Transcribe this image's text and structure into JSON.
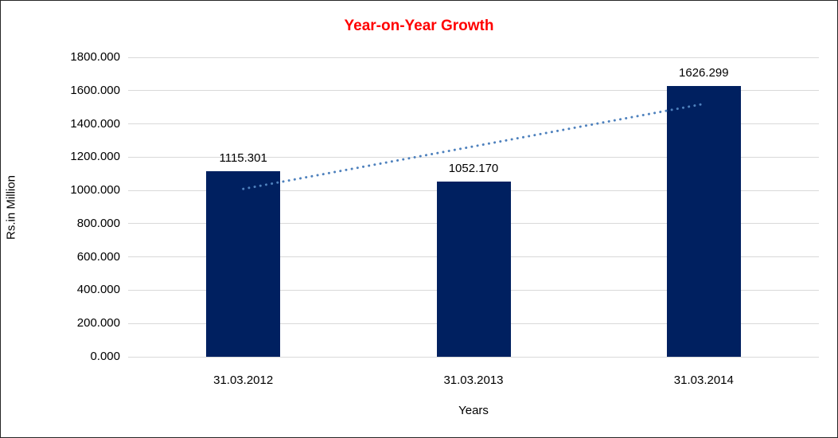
{
  "chart_data": {
    "type": "bar",
    "title": "Year-on-Year Growth",
    "title_color": "#FF0000",
    "xlabel": "Years",
    "ylabel": "Rs.in Million",
    "categories": [
      "31.03.2012",
      "31.03.2013",
      "31.03.2014"
    ],
    "values": [
      1115.301,
      1052.17,
      1626.299
    ],
    "data_labels": [
      "1115.301",
      "1052.170",
      "1626.299"
    ],
    "ylim": [
      0,
      1800
    ],
    "ytick_step": 200,
    "ytick_values": [
      0,
      200,
      400,
      600,
      800,
      1000,
      1200,
      1400,
      1600,
      1800
    ],
    "ytick_labels": [
      "0.000",
      "200.000",
      "400.000",
      "600.000",
      "800.000",
      "1000.000",
      "1200.000",
      "1400.000",
      "1600.000",
      "1800.000"
    ],
    "grid": "horizontal",
    "legend": "none",
    "bar_color": "#002060",
    "gridline_color": "#D9D9D9",
    "text_color": "#000000",
    "background_color": "#FFFFFF",
    "trendline": {
      "type": "linear",
      "style": "dotted",
      "color": "#4E81BD"
    }
  }
}
